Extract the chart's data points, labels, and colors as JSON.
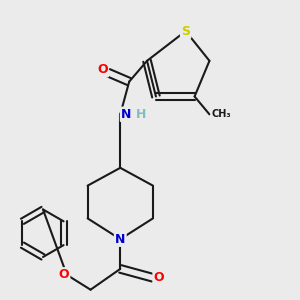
{
  "background_color": "#ebebeb",
  "bond_color": "#1a1a1a",
  "atom_colors": {
    "O": "#ff0000",
    "N": "#0000cc",
    "S": "#cccc00",
    "C": "#1a1a1a",
    "H": "#7fbfbf"
  },
  "figsize": [
    3.0,
    3.0
  ],
  "dpi": 100
}
